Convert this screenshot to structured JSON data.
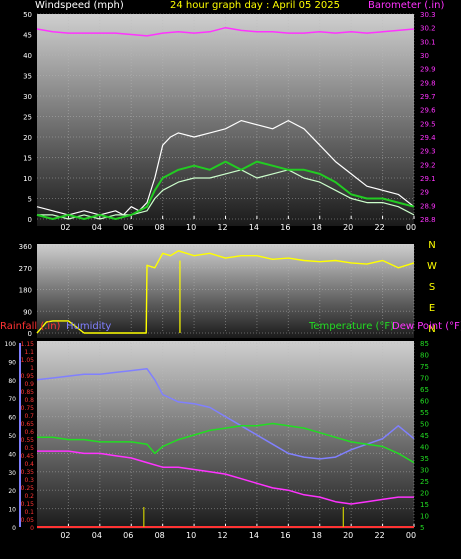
{
  "header": {
    "wind_label": "Windspeed (mph)",
    "title": "24 hour graph day : April 05 2025",
    "baro_label": "Barometer (.in)"
  },
  "bottom_header": {
    "rain_label": "Rainfall (.in)",
    "humidity_label": "Humidity",
    "temp_label": "Temperature (°F)",
    "dew_label": "Dew Point (°F)"
  },
  "colors": {
    "wind_gust": "#ffffff",
    "wind_avg": "#ccffcc",
    "wind_mean": "#22cc22",
    "barometer": "#ff33ff",
    "direction": "#ffff00",
    "rainfall": "#ff3333",
    "rain_rate": "#cccc00",
    "humidity": "#8080ff",
    "temperature": "#22dd22",
    "dewpoint": "#ff33ff",
    "compass": "#ffff00"
  },
  "chart_data": [
    {
      "type": "line",
      "name": "wind",
      "x_ticks": [
        "02",
        "04",
        "06",
        "08",
        "10",
        "12",
        "14",
        "16",
        "18",
        "20",
        "22",
        "00"
      ],
      "y_left_ticks": [
        "0",
        "5",
        "10",
        "15",
        "20",
        "25",
        "30",
        "35",
        "40",
        "45",
        "50"
      ],
      "y_right_ticks": [
        "28.8",
        "28.9",
        "29",
        "29.1",
        "29.2",
        "29.3",
        "29.4",
        "29.5",
        "29.6",
        "29.7",
        "29.8",
        "29.9",
        "30",
        "30.1",
        "30.2",
        "30.3"
      ],
      "ylim_left": [
        0,
        50
      ],
      "ylim_right": [
        28.8,
        30.3
      ],
      "xlim_hours": [
        0,
        24
      ],
      "series": [
        {
          "key": "gust",
          "x": [
            0,
            1,
            2,
            3,
            4,
            5,
            5.5,
            6,
            6.5,
            7,
            7.5,
            8,
            8.5,
            9,
            10,
            11,
            12,
            13,
            14,
            15,
            16,
            17,
            18,
            19,
            20,
            21,
            22,
            23,
            24
          ],
          "y": [
            3,
            2,
            1,
            2,
            1,
            2,
            1,
            3,
            2,
            4,
            10,
            18,
            20,
            21,
            20,
            21,
            22,
            24,
            23,
            22,
            24,
            22,
            18,
            14,
            11,
            8,
            7,
            6,
            3
          ]
        },
        {
          "key": "avg",
          "x": [
            0,
            1,
            2,
            3,
            4,
            5,
            6,
            7,
            7.5,
            8,
            9,
            10,
            11,
            12,
            13,
            14,
            15,
            16,
            17,
            18,
            19,
            20,
            21,
            22,
            23,
            24
          ],
          "y": [
            1,
            1,
            0,
            1,
            0,
            1,
            1,
            2,
            5,
            7,
            9,
            10,
            10,
            11,
            12,
            10,
            11,
            12,
            10,
            9,
            7,
            5,
            4,
            4,
            3,
            1
          ]
        },
        {
          "key": "mean",
          "x": [
            0,
            1,
            2,
            3,
            4,
            5,
            6,
            7,
            7.5,
            8,
            9,
            10,
            11,
            12,
            13,
            14,
            15,
            16,
            17,
            18,
            19,
            20,
            21,
            22,
            23,
            24
          ],
          "y": [
            1,
            0,
            1,
            0,
            1,
            0,
            1,
            3,
            7,
            10,
            12,
            13,
            12,
            14,
            12,
            14,
            13,
            12,
            12,
            11,
            9,
            6,
            5,
            5,
            4,
            3
          ]
        },
        {
          "key": "barometer",
          "x": [
            0,
            1,
            2,
            3,
            4,
            5,
            6,
            7,
            8,
            9,
            10,
            11,
            12,
            13,
            14,
            15,
            16,
            17,
            18,
            19,
            20,
            21,
            22,
            23,
            24
          ],
          "y": [
            30.19,
            30.17,
            30.16,
            30.16,
            30.16,
            30.16,
            30.15,
            30.14,
            30.16,
            30.17,
            30.16,
            30.17,
            30.2,
            30.18,
            30.17,
            30.17,
            30.16,
            30.16,
            30.17,
            30.16,
            30.17,
            30.16,
            30.17,
            30.18,
            30.19
          ]
        }
      ]
    },
    {
      "type": "line",
      "name": "wind_direction",
      "y_left_ticks": [
        "0",
        "90",
        "180",
        "270",
        "360"
      ],
      "compass": [
        "N",
        "W",
        "S",
        "E",
        "N"
      ],
      "ylim": [
        0,
        360
      ],
      "series": [
        {
          "key": "direction",
          "x": [
            0,
            0.4,
            0.6,
            1,
            2,
            3,
            4,
            5,
            6,
            6.95,
            7,
            7.5,
            8,
            8.5,
            9,
            10,
            11,
            12,
            13,
            14,
            15,
            16,
            17,
            18,
            19,
            20,
            21,
            22,
            23,
            24
          ],
          "y": [
            0,
            30,
            45,
            50,
            50,
            0,
            0,
            0,
            0,
            0,
            280,
            270,
            330,
            320,
            340,
            320,
            330,
            310,
            320,
            320,
            305,
            310,
            300,
            295,
            300,
            290,
            285,
            300,
            270,
            290
          ]
        }
      ]
    },
    {
      "type": "line",
      "name": "temperature_humidity",
      "y_far_left_ticks": [
        "0",
        "10",
        "20",
        "30",
        "40",
        "50",
        "60",
        "70",
        "80",
        "90",
        "100"
      ],
      "y_left_ticks": [
        "0",
        "0.05",
        "0.1",
        "0.15",
        "0.2",
        "0.25",
        "0.3",
        "0.35",
        "0.4",
        "0.45",
        "0.5",
        "0.55",
        "0.6",
        "0.65",
        "0.7",
        "0.75",
        "0.8",
        "0.85",
        "0.9",
        "0.95",
        "1",
        "1.05",
        "1.1",
        "1.15"
      ],
      "y_right_ticks": [
        "5",
        "10",
        "15",
        "20",
        "25",
        "30",
        "35",
        "40",
        "45",
        "50",
        "55",
        "60",
        "65",
        "70",
        "75",
        "80",
        "85"
      ],
      "ylim_humidity": [
        0,
        100
      ],
      "ylim_rain": [
        0,
        1.15
      ],
      "ylim_temp": [
        5,
        85
      ],
      "series": [
        {
          "key": "humidity",
          "x": [
            0,
            1,
            2,
            3,
            4,
            5,
            6,
            7,
            7.5,
            8,
            9,
            10,
            11,
            12,
            13,
            14,
            15,
            16,
            17,
            18,
            19,
            20,
            21,
            22,
            23,
            24
          ],
          "y": [
            80,
            81,
            82,
            83,
            83,
            84,
            85,
            86,
            80,
            72,
            68,
            67,
            65,
            60,
            55,
            50,
            45,
            40,
            38,
            37,
            38,
            42,
            45,
            48,
            55,
            48
          ]
        },
        {
          "key": "temperature",
          "x": [
            0,
            1,
            2,
            3,
            4,
            5,
            6,
            7,
            7.5,
            8,
            9,
            10,
            11,
            12,
            13,
            14,
            15,
            16,
            17,
            18,
            19,
            20,
            21,
            22,
            23,
            24
          ],
          "y": [
            44,
            44,
            43,
            43,
            42,
            42,
            42,
            41,
            37,
            40,
            43,
            45,
            47,
            48,
            49,
            49,
            50,
            49,
            48,
            46,
            44,
            42,
            41,
            40,
            37,
            33
          ]
        },
        {
          "key": "dewpoint",
          "x": [
            0,
            1,
            2,
            3,
            4,
            5,
            6,
            7,
            8,
            9,
            10,
            11,
            12,
            13,
            14,
            15,
            16,
            17,
            18,
            19,
            20,
            21,
            22,
            23,
            24
          ],
          "y": [
            38,
            38,
            38,
            37,
            37,
            36,
            35,
            33,
            31,
            31,
            30,
            29,
            28,
            26,
            24,
            22,
            21,
            19,
            18,
            16,
            15,
            16,
            17,
            18,
            18
          ]
        },
        {
          "key": "rainfall",
          "x": [
            0,
            24
          ],
          "y": [
            0,
            0
          ]
        },
        {
          "key": "rain_rate",
          "x": [
            6.8,
            19.5
          ],
          "y": [
            0.1,
            0.1
          ]
        }
      ]
    }
  ]
}
